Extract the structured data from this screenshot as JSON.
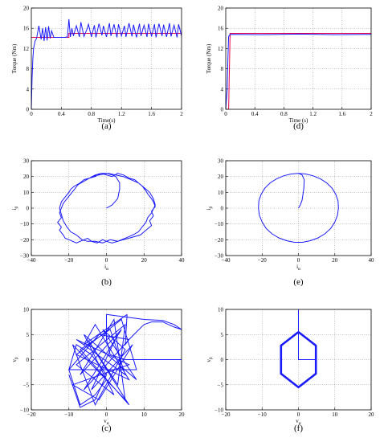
{
  "chart_data": [
    {
      "id": "a",
      "caption": "(a)",
      "type": "line",
      "xlabel": "Time(s)",
      "ylabel": "Torque (Nm)",
      "xlim": [
        0,
        2
      ],
      "ylim": [
        0,
        20
      ],
      "xticks": [
        "0",
        "0.4",
        "0.8",
        "1.2",
        "1.6",
        "2"
      ],
      "yticks": [
        "0",
        "4",
        "8",
        "12",
        "16",
        "20"
      ],
      "grid": true,
      "series": [
        {
          "style": "ref",
          "x": [
            0,
            0.5,
            0.5,
            2
          ],
          "y": [
            14.2,
            14.2,
            15,
            15
          ]
        },
        {
          "style": "trace",
          "x": [
            0,
            0.01,
            0.02,
            0.03,
            0.05,
            0.07,
            0.1,
            0.13,
            0.15,
            0.17,
            0.19,
            0.21,
            0.23,
            0.25,
            0.27,
            0.3,
            0.35,
            0.4,
            0.45,
            0.48,
            0.5,
            0.52,
            0.54,
            0.56,
            0.6,
            0.64,
            0.66,
            0.7,
            0.74,
            0.76,
            0.8,
            0.84,
            0.86,
            0.9,
            0.94,
            0.96,
            1.0,
            1.04,
            1.06,
            1.1,
            1.14,
            1.16,
            1.2,
            1.24,
            1.26,
            1.3,
            1.34,
            1.36,
            1.4,
            1.44,
            1.46,
            1.5,
            1.54,
            1.56,
            1.6,
            1.64,
            1.66,
            1.7,
            1.74,
            1.76,
            1.8,
            1.84,
            1.86,
            1.9,
            1.94,
            1.96,
            2.0
          ],
          "y": [
            0,
            6,
            10,
            12,
            13.5,
            14,
            16.5,
            13.8,
            16,
            13.5,
            16.2,
            13.6,
            16.4,
            14,
            15.5,
            14.2,
            14.2,
            14.2,
            14.2,
            14.3,
            17.8,
            14.3,
            16,
            14.5,
            16.5,
            14.3,
            17.2,
            14.4,
            15.8,
            16.8,
            14.3,
            16.6,
            14.2,
            16.9,
            14.6,
            16.5,
            14.3,
            17,
            14.5,
            16.8,
            14.2,
            16.8,
            14.5,
            16.5,
            14.3,
            17,
            14.4,
            16.7,
            14.2,
            16.9,
            14.5,
            16.6,
            14.3,
            16.9,
            14.4,
            16.8,
            14.2,
            16.9,
            14.5,
            16.7,
            14.3,
            17,
            14.4,
            16.6,
            14.2,
            16.8,
            14.5
          ]
        }
      ]
    },
    {
      "id": "d",
      "caption": "(d)",
      "type": "line",
      "xlabel": "Time (s)",
      "ylabel": "Torque (Nm)",
      "xlim": [
        0,
        2
      ],
      "ylim": [
        0,
        20
      ],
      "xticks": [
        "0",
        "0.4",
        "0.8",
        "1.2",
        "1.6",
        "2"
      ],
      "yticks": [
        "0",
        "4",
        "8",
        "12",
        "16",
        "20"
      ],
      "grid": true,
      "series": [
        {
          "style": "ref",
          "x": [
            0,
            0.04,
            0.06,
            2
          ],
          "y": [
            0,
            0,
            15,
            15
          ]
        },
        {
          "style": "trace",
          "x": [
            0,
            0.02,
            0.03,
            0.04,
            0.06,
            0.5,
            1,
            1.5,
            2
          ],
          "y": [
            0,
            4,
            10,
            14.4,
            14.8,
            14.75,
            14.85,
            14.75,
            14.8
          ]
        }
      ]
    },
    {
      "id": "b",
      "caption": "(b)",
      "type": "scatter",
      "xlabel": "iα",
      "ylabel": "iβ",
      "xlim": [
        -40,
        40
      ],
      "ylim": [
        -30,
        30
      ],
      "xticks": [
        "−40",
        "−20",
        "0",
        "20",
        "40"
      ],
      "yticks": [
        "−30",
        "−20",
        "−10",
        "0",
        "10",
        "20",
        "30"
      ],
      "grid": true,
      "series": [
        {
          "style": "trace",
          "x": [
            0,
            3,
            6,
            7,
            7,
            6,
            5,
            3,
            0,
            -3,
            -6,
            -9,
            -12,
            -15,
            -17,
            -19,
            -21,
            -23,
            -24,
            -25,
            -24,
            -26,
            -24,
            -25,
            -23,
            -22,
            -20,
            -18,
            -16,
            -14,
            -12,
            -10,
            -8,
            -5,
            -2,
            0,
            3,
            6,
            9,
            12,
            15,
            18,
            20,
            22,
            24,
            23,
            25,
            24,
            26,
            25,
            24,
            22,
            21,
            19,
            17,
            15,
            12,
            9,
            6,
            3,
            0,
            -3,
            -6,
            -9,
            -12,
            -14,
            -17,
            -19,
            -20,
            -22,
            -24,
            -25,
            -24,
            -23,
            -21,
            -19,
            -16,
            -13,
            -10,
            -6,
            -2,
            2,
            6,
            10,
            14,
            17,
            19,
            21,
            22,
            24,
            26,
            25,
            23,
            20,
            17,
            13,
            9,
            5,
            1,
            -4,
            -8
          ],
          "y": [
            0,
            2,
            6,
            12,
            16,
            18,
            20,
            21,
            22,
            22,
            21,
            19,
            17,
            15,
            12,
            9,
            6,
            3,
            0,
            -3,
            -6,
            -9,
            -12,
            -14,
            -17,
            -19,
            -20,
            -21,
            -22,
            -21,
            -20,
            -19,
            -21,
            -22,
            -20,
            -21,
            -22,
            -21,
            -20,
            -19,
            -18,
            -17,
            -15,
            -13,
            -11,
            -8,
            -5,
            -2,
            1,
            4,
            6,
            9,
            11,
            14,
            16,
            18,
            19,
            21,
            22,
            20,
            21,
            22,
            20,
            19,
            18,
            16,
            14,
            12,
            10,
            7,
            4,
            0,
            -4,
            -8,
            -12,
            -15,
            -17,
            -20,
            -21,
            -21,
            -22,
            -20,
            -21,
            -19,
            -17,
            -15,
            -12,
            -9,
            -6,
            -3,
            2,
            6,
            10,
            13,
            16,
            18,
            20,
            21,
            22,
            21,
            20
          ]
        }
      ]
    },
    {
      "id": "e",
      "caption": "(e)",
      "type": "scatter",
      "xlabel": "iα",
      "ylabel": "iβ",
      "xlim": [
        -40,
        40
      ],
      "ylim": [
        -30,
        30
      ],
      "xticks": [
        "−40",
        "−20",
        "0",
        "20",
        "40"
      ],
      "yticks": [
        "−30",
        "−20",
        "−10",
        "0",
        "10",
        "20",
        "30"
      ],
      "grid": true,
      "series": [
        {
          "style": "trace",
          "x": [
            0,
            1,
            2,
            2.5,
            3,
            3.2,
            2,
            0
          ],
          "y": [
            0,
            2,
            5,
            9,
            13,
            18,
            21,
            22
          ]
        },
        {
          "style": "trace",
          "x": [
            0,
            -4,
            -8,
            -12,
            -15.5,
            -18.5,
            -20.5,
            -21.8,
            -22,
            -21.5,
            -20,
            -17.8,
            -14.6,
            -10.8,
            -6.6,
            -2.2,
            2.2,
            6.6,
            10.8,
            14.6,
            17.8,
            20,
            21.5,
            22,
            21.8,
            20.5,
            18.5,
            15.5,
            12,
            8,
            4,
            0
          ],
          "y": [
            22,
            21.6,
            20.5,
            18.6,
            16,
            12.6,
            8.8,
            4.6,
            0,
            -4.5,
            -8.8,
            -12.8,
            -16.2,
            -18.8,
            -20.6,
            -21.6,
            -21.6,
            -20.6,
            -18.8,
            -16.2,
            -12.8,
            -8.8,
            -4.5,
            0,
            4.6,
            8.8,
            12.6,
            16,
            18.6,
            20.5,
            21.6,
            22
          ]
        }
      ]
    },
    {
      "id": "c",
      "caption": "(c)",
      "type": "scatter",
      "xlabel": "vα",
      "ylabel": "vβ",
      "xlim": [
        -20,
        20
      ],
      "ylim": [
        -10,
        10
      ],
      "xticks": [
        "−20",
        "−10",
        "0",
        "10",
        "20"
      ],
      "yticks": [
        "−10",
        "−5",
        "0",
        "5",
        "10"
      ],
      "grid": true,
      "series": [
        {
          "style": "trace",
          "x": [
            20,
            5,
            1,
            0,
            0
          ],
          "y": [
            0,
            0,
            1,
            4,
            9
          ]
        },
        {
          "style": "trace",
          "x": [
            0,
            5,
            10,
            15,
            18,
            20,
            18,
            15,
            12,
            10,
            8,
            6,
            5,
            5.5
          ],
          "y": [
            9,
            8.5,
            8,
            7.8,
            7,
            6,
            6.5,
            7.5,
            7.5,
            7,
            5.5,
            4,
            3,
            9
          ]
        },
        {
          "style": "trace",
          "x": [
            5.5,
            -6,
            -3,
            6,
            -8,
            4,
            8,
            -10,
            -2,
            6,
            -6,
            4,
            -7,
            2,
            5,
            -9,
            -3,
            5,
            -1,
            8,
            -6,
            2,
            -8,
            5,
            3,
            -5,
            6,
            -7,
            1,
            5,
            -8,
            6,
            -9,
            -2,
            7,
            -4,
            3
          ],
          "y": [
            9,
            3,
            7,
            -4,
            1,
            8,
            -2,
            -2,
            5,
            4,
            -6,
            6,
            -3,
            8,
            -8,
            3,
            -9,
            2,
            6,
            -4,
            5,
            -7,
            -1,
            7,
            -5,
            4,
            -9,
            2,
            6,
            -3,
            4,
            -1,
            -5,
            -8,
            3,
            -6,
            5
          ]
        },
        {
          "style": "trace",
          "x": [
            -10,
            -7,
            -3,
            0,
            -4,
            -8,
            -10,
            -7,
            -3,
            0
          ],
          "y": [
            -3,
            -9.5,
            -8,
            -3,
            1,
            3,
            -2,
            -9,
            -7,
            -4
          ]
        }
      ]
    },
    {
      "id": "f",
      "caption": "(f)",
      "type": "scatter",
      "xlabel": "vα",
      "ylabel": "vβ",
      "xlim": [
        -20,
        20
      ],
      "ylim": [
        -10,
        10
      ],
      "xticks": [
        "−20",
        "−10",
        "0",
        "10",
        "20"
      ],
      "yticks": [
        "−10",
        "−5",
        "0",
        "5",
        "10"
      ],
      "grid": true,
      "series": [
        {
          "style": "trace",
          "x": [
            4.8,
            0,
            0
          ],
          "y": [
            0,
            0,
            10
          ]
        },
        {
          "style": "trace-thick",
          "x": [
            0,
            4.8,
            4.8,
            0,
            -4.8,
            -4.8,
            0
          ],
          "y": [
            5.5,
            2.8,
            -2.8,
            -5.5,
            -2.8,
            2.8,
            5.5
          ]
        }
      ]
    }
  ]
}
